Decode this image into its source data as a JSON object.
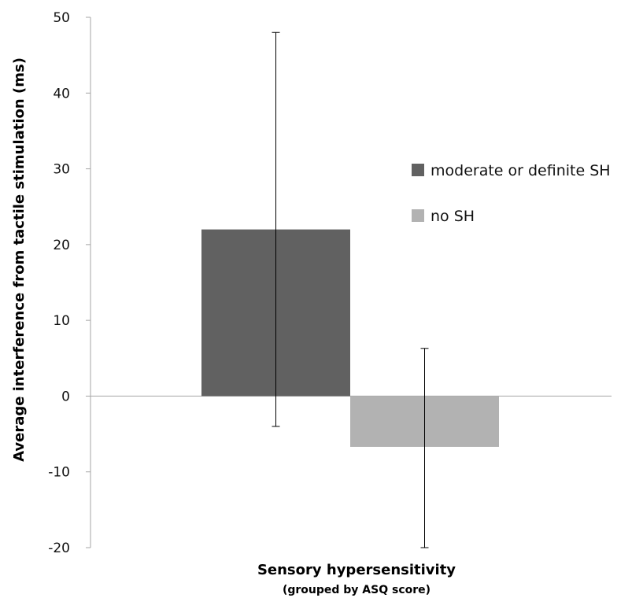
{
  "chart_data": {
    "type": "bar",
    "xlabel": "Sensory hypersensitivity",
    "xsublabel": "(grouped by ASQ score)",
    "ylabel": "Average interference from tactile stimulation (ms)",
    "ylim": [
      -20,
      50
    ],
    "yticks": [
      "50",
      "40",
      "30",
      "20",
      "10",
      "0",
      "-10",
      "-20"
    ],
    "grid": false,
    "legend_position": "right",
    "series": [
      {
        "name": "moderate or definite SH",
        "value": 22,
        "error_low": -4,
        "error_high": 48,
        "color": "#616161"
      },
      {
        "name": "no SH",
        "value": -6.7,
        "error_low": -20,
        "error_high": 6.3,
        "color": "#b2b2b2"
      }
    ]
  }
}
